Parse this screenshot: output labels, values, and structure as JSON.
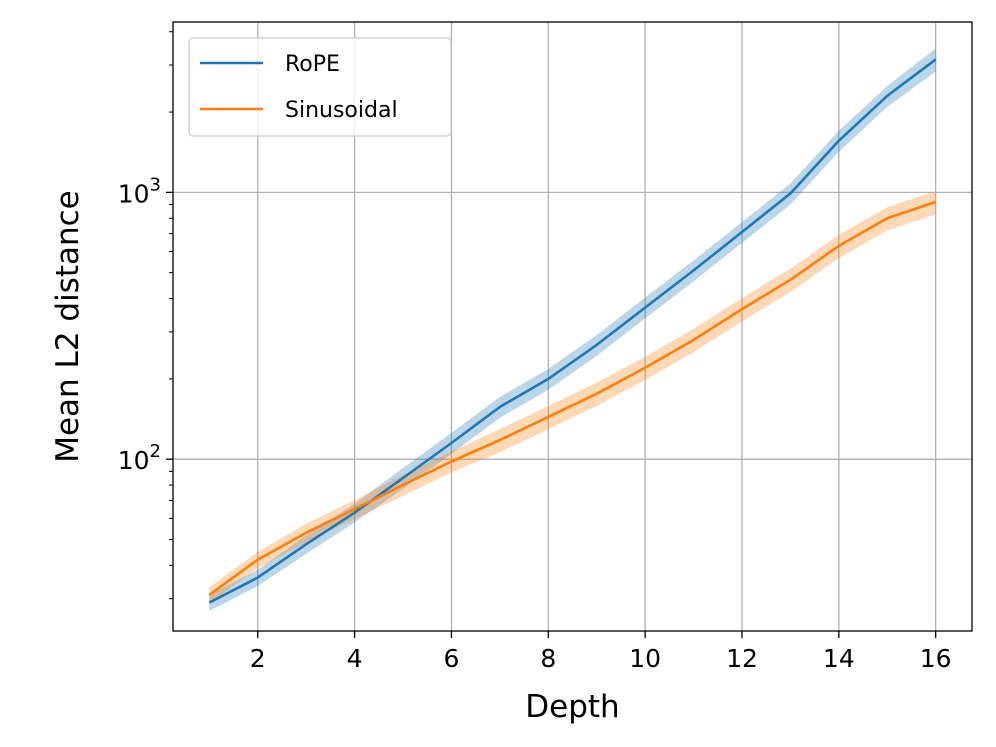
{
  "chart_data": {
    "type": "line",
    "xlabel": "Depth",
    "ylabel": "Mean L2 distance",
    "xlim": [
      0.25,
      16.75
    ],
    "ylim": [
      22.7,
      4350
    ],
    "yscale": "log",
    "grid": true,
    "legend_position": "top-left",
    "x_ticks": [
      2,
      4,
      6,
      8,
      10,
      12,
      14,
      16
    ],
    "x_tick_labels": [
      "2",
      "4",
      "6",
      "8",
      "10",
      "12",
      "14",
      "16"
    ],
    "y_ticks": [
      {
        "value": 100,
        "base": "10",
        "exp": "2"
      },
      {
        "value": 1000,
        "base": "10",
        "exp": "3"
      }
    ],
    "x": [
      1,
      2,
      3,
      4,
      5,
      6,
      7,
      8,
      9,
      10,
      11,
      12,
      13,
      14,
      15,
      16
    ],
    "series": [
      {
        "name": "RoPE",
        "color": "#1f77b4",
        "values": [
          29,
          36,
          48,
          63,
          85,
          115,
          157,
          200,
          268,
          370,
          510,
          710,
          990,
          1560,
          2300,
          3150
        ],
        "band": [
          0.07,
          0.07,
          0.08,
          0.08,
          0.09,
          0.09,
          0.09,
          0.09,
          0.09,
          0.09,
          0.09,
          0.09,
          0.09,
          0.09,
          0.09,
          0.1
        ]
      },
      {
        "name": "Sinusoidal",
        "color": "#ff7f0e",
        "values": [
          31,
          42,
          53,
          65,
          80,
          98,
          118,
          144,
          176,
          220,
          280,
          365,
          470,
          630,
          800,
          920
        ],
        "band": [
          0.07,
          0.07,
          0.08,
          0.08,
          0.09,
          0.09,
          0.1,
          0.1,
          0.1,
          0.1,
          0.1,
          0.1,
          0.1,
          0.1,
          0.1,
          0.1
        ]
      }
    ]
  }
}
